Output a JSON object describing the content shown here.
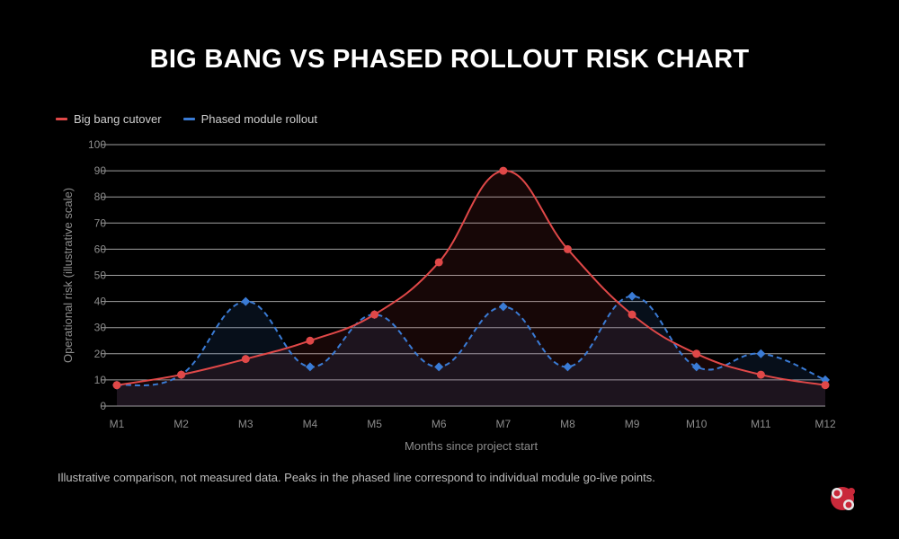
{
  "title": "BIG BANG VS PHASED ROLLOUT RISK CHART",
  "note": "Illustrative comparison, not measured data. Peaks in the phased line correspond to individual module go-live points.",
  "colors": {
    "background": "#000000",
    "grid": "#bdbdbd",
    "big_bang": "#e04848",
    "phased": "#3a7bd5"
  },
  "logo_icon": "brand-logo-icon",
  "chart_data": {
    "type": "line",
    "categories": [
      "M1",
      "M2",
      "M3",
      "M4",
      "M5",
      "M6",
      "M7",
      "M8",
      "M9",
      "M10",
      "M11",
      "M12"
    ],
    "series": [
      {
        "name": "Big bang cutover",
        "line_style": "solid",
        "marker": "circle",
        "values": [
          8,
          12,
          18,
          25,
          35,
          55,
          90,
          60,
          35,
          20,
          12,
          8
        ]
      },
      {
        "name": "Phased module rollout",
        "line_style": "dashed",
        "marker": "diamond",
        "values": [
          8,
          12,
          40,
          15,
          35,
          15,
          38,
          15,
          42,
          15,
          20,
          10
        ]
      }
    ],
    "xlabel": "Months since project start",
    "ylabel": "Operational risk (illustrative scale)",
    "ylim": [
      0,
      100
    ],
    "yticks": [
      0,
      10,
      20,
      30,
      40,
      50,
      60,
      70,
      80,
      90,
      100
    ],
    "grid": true,
    "legend_position": "top-left"
  }
}
